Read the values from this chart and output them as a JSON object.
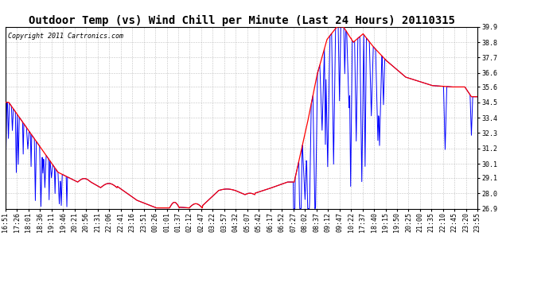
{
  "title": "Outdoor Temp (vs) Wind Chill per Minute (Last 24 Hours) 20110315",
  "copyright": "Copyright 2011 Cartronics.com",
  "ylim": [
    26.9,
    39.9
  ],
  "yticks": [
    26.9,
    28.0,
    29.1,
    30.1,
    31.2,
    32.3,
    33.4,
    34.5,
    35.6,
    36.6,
    37.7,
    38.8,
    39.9
  ],
  "background_color": "#ffffff",
  "grid_color": "#aaaaaa",
  "red_color": "#ff0000",
  "blue_color": "#0000ff",
  "title_fontsize": 10,
  "copyright_fontsize": 6,
  "tick_fontsize": 6,
  "xtick_labels": [
    "16:51",
    "17:26",
    "18:01",
    "18:36",
    "19:11",
    "19:46",
    "20:21",
    "20:56",
    "21:31",
    "22:06",
    "22:41",
    "23:16",
    "23:51",
    "00:26",
    "01:01",
    "01:37",
    "02:12",
    "02:47",
    "03:22",
    "03:57",
    "04:32",
    "05:07",
    "05:42",
    "06:17",
    "06:52",
    "07:27",
    "08:02",
    "08:37",
    "09:12",
    "09:47",
    "10:22",
    "17:37",
    "18:40",
    "19:15",
    "19:50",
    "20:25",
    "21:00",
    "21:35",
    "22:10",
    "22:45",
    "23:20",
    "23:55"
  ]
}
